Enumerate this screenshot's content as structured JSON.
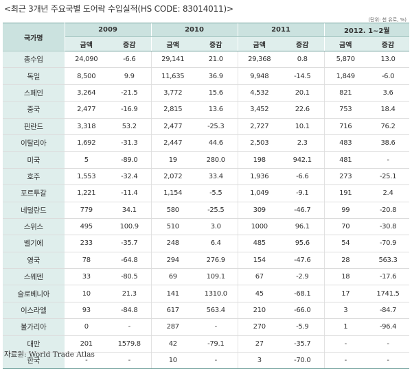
{
  "title": "<최근 3개년 주요국별 도어락 수입실적(HS CODE: 83014011)>",
  "unit": "(단위: 천 유로, %)",
  "table": {
    "corner_label": "국가명",
    "years": [
      "2009",
      "2010",
      "2011",
      "2012. 1~2월"
    ],
    "sub_headers": [
      "금액",
      "증감"
    ],
    "rows": [
      {
        "name": "총수입",
        "cells": [
          "24,090",
          "-6.6",
          "29,141",
          "21.0",
          "29,368",
          "0.8",
          "5,870",
          "13.0"
        ]
      },
      {
        "name": "독일",
        "cells": [
          "8,500",
          "9.9",
          "11,635",
          "36.9",
          "9,948",
          "-14.5",
          "1,849",
          "-6.0"
        ]
      },
      {
        "name": "스페인",
        "cells": [
          "3,264",
          "-21.5",
          "3,772",
          "15.6",
          "4,532",
          "20.1",
          "821",
          "3.6"
        ]
      },
      {
        "name": "중국",
        "cells": [
          "2,477",
          "-16.9",
          "2,815",
          "13.6",
          "3,452",
          "22.6",
          "753",
          "18.4"
        ]
      },
      {
        "name": "핀란드",
        "cells": [
          "3,318",
          "53.2",
          "2,477",
          "-25.3",
          "2,727",
          "10.1",
          "716",
          "76.2"
        ]
      },
      {
        "name": "이탈리아",
        "cells": [
          "1,692",
          "-31.3",
          "2,447",
          "44.6",
          "2,503",
          "2.3",
          "483",
          "38.6"
        ]
      },
      {
        "name": "미국",
        "cells": [
          "5",
          "-89.0",
          "19",
          "280.0",
          "198",
          "942.1",
          "481",
          "-"
        ]
      },
      {
        "name": "호주",
        "cells": [
          "1,553",
          "-32.4",
          "2,072",
          "33.4",
          "1,936",
          "-6.6",
          "273",
          "-25.1"
        ]
      },
      {
        "name": "포르투갈",
        "cells": [
          "1,221",
          "-11.4",
          "1,154",
          "-5.5",
          "1,049",
          "-9.1",
          "191",
          "2.4"
        ]
      },
      {
        "name": "네덜란드",
        "cells": [
          "779",
          "34.1",
          "580",
          "-25.5",
          "309",
          "-46.7",
          "99",
          "-20.8"
        ]
      },
      {
        "name": "스위스",
        "cells": [
          "495",
          "100.9",
          "510",
          "3.0",
          "1000",
          "96.1",
          "70",
          "-30.8"
        ]
      },
      {
        "name": "벨기에",
        "cells": [
          "233",
          "-35.7",
          "248",
          "6.4",
          "485",
          "95.6",
          "54",
          "-70.9"
        ]
      },
      {
        "name": "영국",
        "cells": [
          "78",
          "-64.8",
          "294",
          "276.9",
          "154",
          "-47.6",
          "28",
          "563.3"
        ]
      },
      {
        "name": "스웨덴",
        "cells": [
          "33",
          "-80.5",
          "69",
          "109.1",
          "67",
          "-2.9",
          "18",
          "-17.6"
        ]
      },
      {
        "name": "슬로베니아",
        "cells": [
          "10",
          "21.3",
          "141",
          "1310.0",
          "45",
          "-68.1",
          "17",
          "1741.5"
        ]
      },
      {
        "name": "이스라엘",
        "cells": [
          "93",
          "-84.8",
          "617",
          "563.4",
          "210",
          "-66.0",
          "3",
          "-84.7"
        ]
      },
      {
        "name": "불가리아",
        "cells": [
          "0",
          "-",
          "287",
          "-",
          "270",
          "-5.9",
          "1",
          "-96.4"
        ]
      },
      {
        "name": "대만",
        "cells": [
          "201",
          "1579.8",
          "42",
          "-79.1",
          "27",
          "-35.7",
          "-",
          "-"
        ]
      },
      {
        "name": "한국",
        "cells": [
          "-",
          "-",
          "10",
          "-",
          "3",
          "-70.0",
          "-",
          "-"
        ]
      }
    ]
  },
  "source": "자료원: World Trade Atlas"
}
